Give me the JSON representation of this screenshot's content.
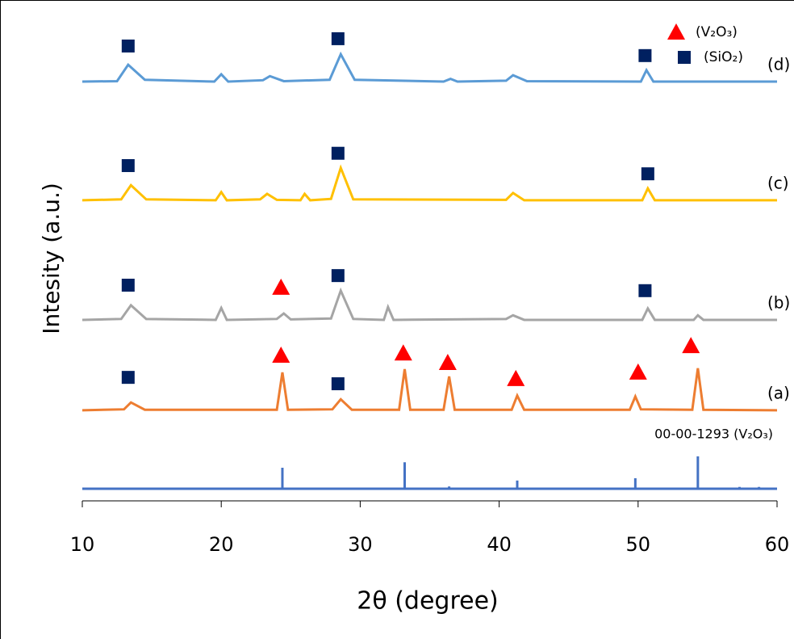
{
  "chart_data": {
    "type": "line",
    "xlabel": "2θ (degree)",
    "ylabel": "Intesity (a.u.)",
    "xlim": [
      10,
      60
    ],
    "ylim": [
      0,
      100
    ],
    "xticks": [
      10,
      20,
      30,
      40,
      50,
      60
    ],
    "series": [
      {
        "name": "(a)",
        "color": "#ed7d31",
        "x": [
          10,
          13,
          13.5,
          14.5,
          24,
          24.4,
          24.8,
          28,
          28.6,
          29.4,
          32.8,
          33.2,
          33.6,
          36,
          36.4,
          36.8,
          40.9,
          41.3,
          41.8,
          49.4,
          49.8,
          50.2,
          53.9,
          54.3,
          54.7,
          60
        ],
        "values": [
          17.2,
          17.4,
          18.9,
          17.3,
          17.3,
          25.5,
          17.3,
          17.4,
          19.6,
          17.3,
          17.3,
          26.2,
          17.3,
          17.3,
          24.6,
          17.3,
          17.3,
          20.4,
          17.3,
          17.3,
          20.2,
          17.4,
          17.3,
          26.4,
          17.3,
          17.2
        ]
      },
      {
        "name": "(b)",
        "color": "#a5a5a5",
        "x": [
          10,
          12.8,
          13.5,
          14.6,
          19.6,
          20,
          20.4,
          24,
          24.5,
          25,
          27.9,
          28.6,
          29.5,
          31.7,
          32,
          32.4,
          40.5,
          41,
          41.8,
          50.3,
          50.7,
          51.2,
          54,
          54.3,
          54.7,
          60
        ],
        "values": [
          37,
          37.2,
          40.2,
          37.2,
          37,
          39.6,
          37,
          37.2,
          38.4,
          37.1,
          37.3,
          43.4,
          37.2,
          37,
          39.8,
          37,
          37.2,
          38,
          37,
          37,
          39.5,
          37,
          37,
          38,
          37,
          37
        ]
      },
      {
        "name": "(c)",
        "color": "#ffc000",
        "x": [
          10,
          12.8,
          13.5,
          14.6,
          19.6,
          20,
          20.4,
          22.8,
          23.3,
          24,
          25.7,
          26,
          26.4,
          27.9,
          28.6,
          29.5,
          40.5,
          41,
          41.8,
          50.3,
          50.7,
          51.2,
          60
        ],
        "values": [
          63.2,
          63.4,
          66.5,
          63.4,
          63.2,
          65,
          63.2,
          63.4,
          64.6,
          63.3,
          63.2,
          64.6,
          63.2,
          63.5,
          70.3,
          63.4,
          63.3,
          64.8,
          63.2,
          63.2,
          65.8,
          63.2,
          63.2
        ]
      },
      {
        "name": "(d)",
        "color": "#5b9bd5",
        "x": [
          10,
          12.5,
          13.3,
          14.5,
          19.5,
          20,
          20.5,
          23,
          23.5,
          24.5,
          27.8,
          28.6,
          29.6,
          36,
          36.5,
          37,
          40.5,
          41,
          42,
          50.2,
          50.6,
          51.1,
          60
        ],
        "values": [
          89.2,
          89.3,
          92.9,
          89.6,
          89.2,
          90.8,
          89.2,
          89.5,
          90.4,
          89.3,
          89.6,
          95.2,
          89.6,
          89.2,
          89.8,
          89.2,
          89.4,
          90.6,
          89.3,
          89.2,
          91.7,
          89.2,
          89.2
        ]
      }
    ],
    "reference": {
      "name": "00-00-1293 (V₂O₃)",
      "color": "#4472c4",
      "x": [
        24.4,
        33.2,
        36.4,
        41.3,
        49.8,
        54.3,
        57.3,
        58.7
      ],
      "values": [
        4.6,
        5.8,
        0.5,
        1.8,
        2.3,
        7.1,
        0.4,
        0.4
      ]
    },
    "annotations": [
      {
        "symbol": "square",
        "x": 13.3,
        "y": 97
      },
      {
        "symbol": "square",
        "x": 28.4,
        "y": 98.6
      },
      {
        "symbol": "square",
        "x": 50.5,
        "y": 94.9
      },
      {
        "symbol": "square",
        "x": 13.3,
        "y": 70.8
      },
      {
        "symbol": "square",
        "x": 28.4,
        "y": 73.5
      },
      {
        "symbol": "square",
        "x": 50.7,
        "y": 69
      },
      {
        "symbol": "square",
        "x": 13.3,
        "y": 44.6
      },
      {
        "symbol": "square",
        "x": 28.4,
        "y": 46.7
      },
      {
        "symbol": "square",
        "x": 50.5,
        "y": 43.4
      },
      {
        "symbol": "triangle",
        "x": 24.3,
        "y": 44.1
      },
      {
        "symbol": "square",
        "x": 13.3,
        "y": 24.4
      },
      {
        "symbol": "square",
        "x": 28.4,
        "y": 23
      },
      {
        "symbol": "triangle",
        "x": 24.3,
        "y": 29.2
      },
      {
        "symbol": "triangle",
        "x": 33.1,
        "y": 29.7
      },
      {
        "symbol": "triangle",
        "x": 36.3,
        "y": 27.6
      },
      {
        "symbol": "triangle",
        "x": 41.2,
        "y": 24.1
      },
      {
        "symbol": "triangle",
        "x": 50,
        "y": 25.5
      },
      {
        "symbol": "triangle",
        "x": 53.8,
        "y": 31.3
      }
    ],
    "legend": [
      {
        "symbol": "triangle",
        "label": "(V₂O₃)",
        "color": "#ff0000"
      },
      {
        "symbol": "square",
        "label": "(SiO₂)",
        "color": "#002060"
      }
    ]
  }
}
